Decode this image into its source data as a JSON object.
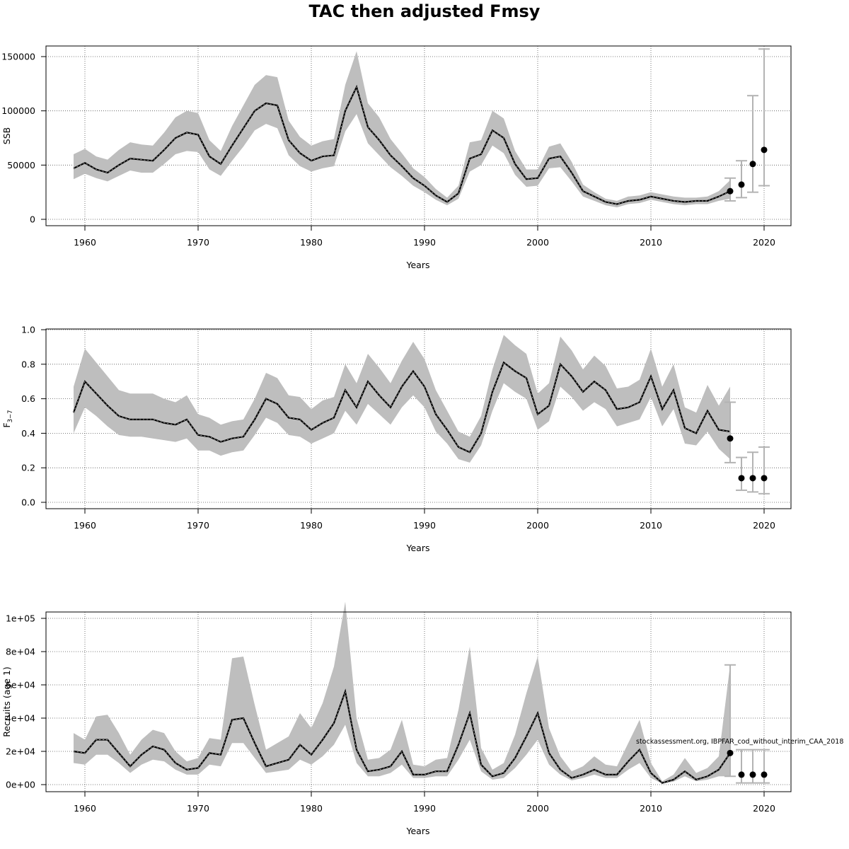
{
  "title": "TAC then adjusted Fmsy",
  "watermark": "stockassessment.org, IBPFAR_cod_without_interim_CAA_2018",
  "colors": {
    "band": "#bebebe",
    "line": "#000000",
    "grid": "#666666",
    "proj": "#b3b3b3"
  },
  "chart_data": [
    {
      "type": "line",
      "ylabel": "SSB",
      "xlabel": "Years",
      "xlim": [
        1959,
        2020
      ],
      "ylim": [
        0,
        155000
      ],
      "xticks": [
        1960,
        1970,
        1980,
        1990,
        2000,
        2010,
        2020
      ],
      "yticks": [
        0,
        50000,
        100000,
        150000
      ],
      "ytick_labels": [
        "0",
        "50000",
        "100000",
        "150000"
      ],
      "grid": true,
      "x": [
        1959,
        1960,
        1961,
        1962,
        1963,
        1964,
        1965,
        1966,
        1967,
        1968,
        1969,
        1970,
        1971,
        1972,
        1973,
        1974,
        1975,
        1976,
        1977,
        1978,
        1979,
        1980,
        1981,
        1982,
        1983,
        1984,
        1985,
        1986,
        1987,
        1988,
        1989,
        1990,
        1991,
        1992,
        1993,
        1994,
        1995,
        1996,
        1997,
        1998,
        1999,
        2000,
        2001,
        2002,
        2003,
        2004,
        2005,
        2006,
        2007,
        2008,
        2009,
        2010,
        2011,
        2012,
        2013,
        2014,
        2015,
        2016,
        2017
      ],
      "estimate": [
        47000,
        52000,
        46000,
        43000,
        50000,
        56000,
        55000,
        54000,
        64000,
        75000,
        80000,
        78000,
        58000,
        51000,
        68000,
        84000,
        100000,
        107000,
        105000,
        73000,
        61000,
        54000,
        58000,
        59000,
        100000,
        122000,
        85000,
        73000,
        59000,
        49000,
        38000,
        31000,
        22000,
        16000,
        24000,
        56000,
        60000,
        82000,
        75000,
        51000,
        37000,
        38000,
        56000,
        58000,
        43000,
        26000,
        21000,
        16000,
        14000,
        17000,
        18000,
        21000,
        19000,
        17000,
        16000,
        17000,
        17000,
        21000,
        26000
      ],
      "upper": [
        60000,
        65000,
        58000,
        55000,
        64000,
        71000,
        69000,
        68000,
        80000,
        94000,
        100000,
        98000,
        73000,
        63000,
        86000,
        105000,
        124000,
        133000,
        131000,
        91000,
        76000,
        68000,
        72000,
        74000,
        124000,
        155000,
        107000,
        94000,
        74000,
        61000,
        47000,
        39000,
        28000,
        20000,
        31000,
        71000,
        73000,
        100000,
        93000,
        63000,
        46000,
        46000,
        67000,
        70000,
        53000,
        32000,
        25000,
        19000,
        17000,
        21000,
        22000,
        25000,
        23000,
        21000,
        20000,
        20000,
        21000,
        26000,
        36000
      ],
      "lower": [
        37000,
        42000,
        38000,
        35000,
        40000,
        45000,
        43000,
        43000,
        51000,
        60000,
        63000,
        62000,
        46000,
        40000,
        54000,
        67000,
        82000,
        88000,
        84000,
        59000,
        49000,
        44000,
        47000,
        49000,
        81000,
        97000,
        70000,
        59000,
        48000,
        40000,
        31000,
        25000,
        18000,
        13000,
        19000,
        44000,
        50000,
        68000,
        61000,
        41000,
        30000,
        31000,
        47000,
        48000,
        35000,
        21000,
        17000,
        13000,
        11000,
        14000,
        15000,
        18000,
        16000,
        14000,
        13000,
        14000,
        14000,
        17000,
        19000
      ],
      "projection": {
        "years": [
          2017,
          2018,
          2019,
          2020
        ],
        "median": [
          26000,
          32000,
          51000,
          64000
        ],
        "low": [
          17000,
          20000,
          25000,
          31000
        ],
        "high": [
          38000,
          54000,
          114000,
          157000
        ]
      }
    },
    {
      "type": "line",
      "ylabel": "F",
      "ylabel_sub": "3−7",
      "xlabel": "Years",
      "xlim": [
        1959,
        2020
      ],
      "ylim": [
        0.0,
        1.0
      ],
      "xticks": [
        1960,
        1970,
        1980,
        1990,
        2000,
        2010,
        2020
      ],
      "yticks": [
        0.0,
        0.2,
        0.4,
        0.6,
        0.8,
        1.0
      ],
      "ytick_labels": [
        "0.0",
        "0.2",
        "0.4",
        "0.6",
        "0.8",
        "1.0"
      ],
      "grid": true,
      "x": [
        1959,
        1960,
        1961,
        1962,
        1963,
        1964,
        1965,
        1966,
        1967,
        1968,
        1969,
        1970,
        1971,
        1972,
        1973,
        1974,
        1975,
        1976,
        1977,
        1978,
        1979,
        1980,
        1981,
        1982,
        1983,
        1984,
        1985,
        1986,
        1987,
        1988,
        1989,
        1990,
        1991,
        1992,
        1993,
        1994,
        1995,
        1996,
        1997,
        1998,
        1999,
        2000,
        2001,
        2002,
        2003,
        2004,
        2005,
        2006,
        2007,
        2008,
        2009,
        2010,
        2011,
        2012,
        2013,
        2014,
        2015,
        2016,
        2017
      ],
      "estimate": [
        0.52,
        0.7,
        0.63,
        0.56,
        0.5,
        0.48,
        0.48,
        0.48,
        0.46,
        0.45,
        0.48,
        0.39,
        0.38,
        0.35,
        0.37,
        0.38,
        0.48,
        0.6,
        0.57,
        0.49,
        0.48,
        0.42,
        0.46,
        0.49,
        0.65,
        0.55,
        0.7,
        0.62,
        0.55,
        0.67,
        0.76,
        0.67,
        0.51,
        0.42,
        0.32,
        0.29,
        0.4,
        0.64,
        0.81,
        0.76,
        0.72,
        0.51,
        0.56,
        0.8,
        0.73,
        0.64,
        0.7,
        0.65,
        0.54,
        0.55,
        0.58,
        0.73,
        0.54,
        0.65,
        0.43,
        0.4,
        0.53,
        0.42,
        0.41
      ],
      "upper": [
        0.67,
        0.89,
        0.81,
        0.73,
        0.65,
        0.63,
        0.63,
        0.63,
        0.6,
        0.58,
        0.62,
        0.51,
        0.49,
        0.45,
        0.47,
        0.48,
        0.6,
        0.75,
        0.72,
        0.62,
        0.61,
        0.54,
        0.59,
        0.61,
        0.8,
        0.69,
        0.86,
        0.78,
        0.69,
        0.82,
        0.93,
        0.83,
        0.65,
        0.53,
        0.41,
        0.38,
        0.5,
        0.77,
        0.97,
        0.91,
        0.86,
        0.63,
        0.69,
        0.96,
        0.88,
        0.77,
        0.85,
        0.79,
        0.66,
        0.67,
        0.71,
        0.89,
        0.67,
        0.8,
        0.55,
        0.52,
        0.68,
        0.56,
        0.67
      ],
      "lower": [
        0.4,
        0.55,
        0.5,
        0.44,
        0.39,
        0.38,
        0.38,
        0.37,
        0.36,
        0.35,
        0.37,
        0.3,
        0.3,
        0.27,
        0.29,
        0.3,
        0.39,
        0.49,
        0.46,
        0.39,
        0.38,
        0.34,
        0.37,
        0.4,
        0.53,
        0.45,
        0.57,
        0.51,
        0.45,
        0.55,
        0.62,
        0.55,
        0.41,
        0.34,
        0.25,
        0.23,
        0.33,
        0.53,
        0.69,
        0.64,
        0.6,
        0.42,
        0.47,
        0.67,
        0.61,
        0.53,
        0.58,
        0.54,
        0.44,
        0.46,
        0.48,
        0.61,
        0.44,
        0.54,
        0.34,
        0.33,
        0.41,
        0.31,
        0.25
      ],
      "projection": {
        "years": [
          2017,
          2018,
          2019,
          2020
        ],
        "median": [
          0.37,
          0.14,
          0.14,
          0.14
        ],
        "low": [
          0.23,
          0.07,
          0.06,
          0.05
        ],
        "high": [
          0.58,
          0.26,
          0.29,
          0.32
        ]
      }
    },
    {
      "type": "line",
      "ylabel": "Recruits (age 1)",
      "xlabel": "Years",
      "xlim": [
        1959,
        2020
      ],
      "ylim": [
        0,
        110000
      ],
      "xticks": [
        1960,
        1970,
        1980,
        1990,
        2000,
        2010,
        2020
      ],
      "yticks": [
        0,
        20000,
        40000,
        60000,
        80000,
        100000
      ],
      "ytick_labels": [
        "0e+00",
        "2e+04",
        "4e+04",
        "6e+04",
        "8e+04",
        "1e+05"
      ],
      "grid": true,
      "x": [
        1959,
        1960,
        1961,
        1962,
        1963,
        1964,
        1965,
        1966,
        1967,
        1968,
        1969,
        1970,
        1971,
        1972,
        1973,
        1974,
        1975,
        1976,
        1977,
        1978,
        1979,
        1980,
        1981,
        1982,
        1983,
        1984,
        1985,
        1986,
        1987,
        1988,
        1989,
        1990,
        1991,
        1992,
        1993,
        1994,
        1995,
        1996,
        1997,
        1998,
        1999,
        2000,
        2001,
        2002,
        2003,
        2004,
        2005,
        2006,
        2007,
        2008,
        2009,
        2010,
        2011,
        2012,
        2013,
        2014,
        2015,
        2016,
        2017
      ],
      "estimate": [
        20000,
        19000,
        27000,
        27000,
        19000,
        11000,
        18000,
        23000,
        21000,
        13000,
        9000,
        10000,
        19000,
        18000,
        39000,
        40000,
        25000,
        11000,
        13000,
        15000,
        24000,
        18000,
        27000,
        37000,
        56000,
        21000,
        8000,
        9000,
        11000,
        20000,
        6000,
        6000,
        8000,
        8000,
        24000,
        43000,
        12000,
        5000,
        7000,
        16000,
        29000,
        43000,
        19000,
        9000,
        4000,
        6000,
        9000,
        6000,
        6000,
        14000,
        21000,
        7000,
        1000,
        3000,
        8000,
        3000,
        5000,
        9000,
        19000
      ],
      "upper": [
        31000,
        27000,
        41000,
        42000,
        31000,
        18000,
        27000,
        33000,
        31000,
        20000,
        14000,
        16000,
        28000,
        27000,
        76000,
        77000,
        48000,
        21000,
        25000,
        29000,
        43000,
        34000,
        49000,
        71000,
        110000,
        40000,
        15000,
        16000,
        21000,
        39000,
        12000,
        11000,
        15000,
        16000,
        45000,
        83000,
        22000,
        9000,
        13000,
        30000,
        55000,
        77000,
        34000,
        17000,
        8000,
        11000,
        17000,
        12000,
        11000,
        25000,
        39000,
        13000,
        2000,
        6000,
        16000,
        7000,
        10000,
        17000,
        72000
      ],
      "lower": [
        13000,
        12000,
        18000,
        18000,
        13000,
        7000,
        12000,
        15000,
        14000,
        9000,
        6000,
        6000,
        12000,
        11000,
        25000,
        25000,
        16000,
        7000,
        8000,
        9000,
        15000,
        12000,
        17000,
        24000,
        36000,
        13000,
        5000,
        5000,
        7000,
        12000,
        4000,
        4000,
        5000,
        5000,
        15000,
        27000,
        8000,
        3000,
        4000,
        10000,
        18000,
        27000,
        12000,
        6000,
        2500,
        4000,
        6000,
        4000,
        4000,
        9000,
        13000,
        4000,
        600,
        1800,
        5000,
        2000,
        3000,
        5000,
        5000
      ],
      "projection": {
        "years": [
          2017,
          2018,
          2019,
          2020
        ],
        "median": [
          19000,
          6000,
          6000,
          6000
        ],
        "low": [
          5000,
          1000,
          1000,
          1000
        ],
        "high": [
          72000,
          21000,
          21000,
          21000
        ]
      }
    }
  ]
}
